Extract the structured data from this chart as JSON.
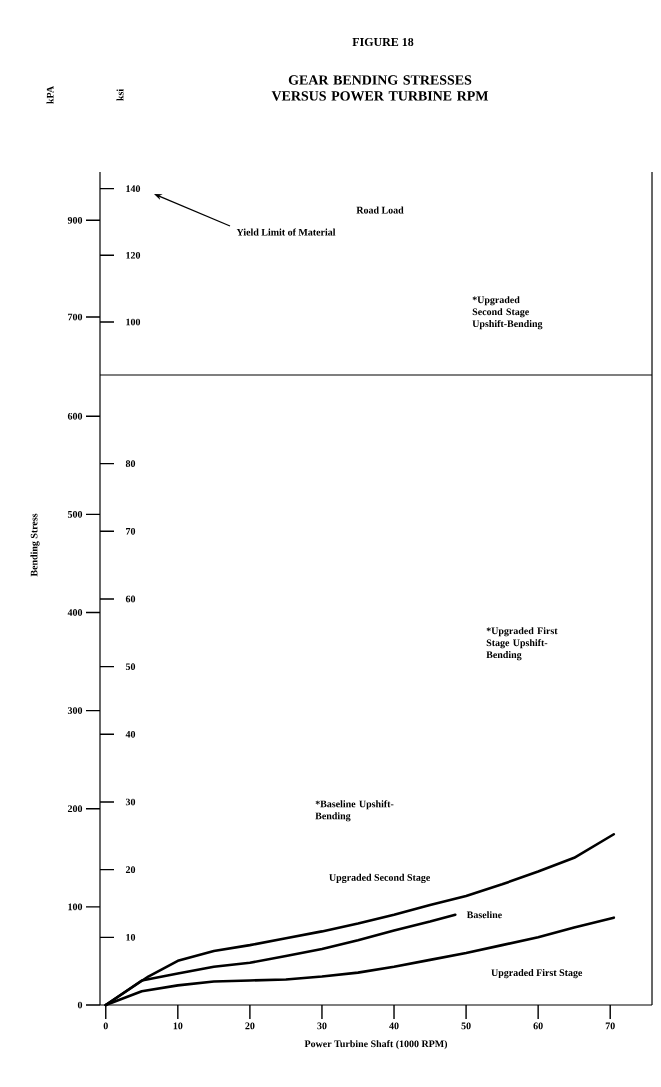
{
  "chart_data": [
    {
      "type": "line",
      "title": "FIGURE 18",
      "subtitle": "GEAR BENDING STRESSES VERSUS POWER TURBINE RPM",
      "y2label": "ksi",
      "xlim": [
        -0.8,
        75.8
      ],
      "ylim": [
        580,
        1000
      ],
      "yticks": [
        700,
        900
      ],
      "y2lim": [
        84.1,
        145.0
      ],
      "y2ticks": [
        100,
        120,
        140
      ],
      "tick_labels": "y",
      "annotations": [
        "kPA",
        "Road Load",
        "Yield Limit of Material",
        "*Upgraded Second Stage Upshift-Bending"
      ]
    },
    {
      "type": "line",
      "xlabel": "Power Turbine Shaft (1000 RPM)",
      "ylabel": "Bending Stress",
      "xlim": [
        -0.8,
        75.8
      ],
      "xticks": [
        0,
        10,
        20,
        30,
        40,
        50,
        60,
        70
      ],
      "ylim": [
        0,
        642
      ],
      "yticks": [
        0,
        100,
        200,
        300,
        400,
        500,
        600
      ],
      "y2lim": [
        0,
        93.1
      ],
      "y2ticks": [
        10,
        20,
        30,
        40,
        50,
        60,
        70,
        80
      ],
      "line_style": "solid",
      "marker": "none",
      "series": [
        {
          "name": "Upgraded Second Stage",
          "color": "#000000",
          "x": [
            0,
            5.9,
            10,
            15,
            20,
            25,
            30,
            35,
            40,
            45,
            50,
            55,
            60,
            65,
            70.5
          ],
          "values": [
            0,
            29,
            45,
            55,
            61,
            68,
            75,
            83,
            92,
            102,
            111,
            123,
            136,
            150,
            174
          ]
        },
        {
          "name": "Baseline",
          "color": "#000000",
          "x": [
            0,
            5,
            10,
            15,
            20,
            25,
            30,
            35,
            40,
            45,
            48.5
          ],
          "values": [
            0,
            25,
            32,
            39,
            43,
            50,
            57,
            66,
            76,
            85,
            92
          ]
        },
        {
          "name": "Upgraded First Stage",
          "color": "#000000",
          "x": [
            0,
            5,
            10,
            15,
            20,
            25,
            30,
            35,
            40,
            45,
            50,
            55,
            60,
            65,
            70.5
          ],
          "values": [
            0,
            14,
            20,
            24,
            25,
            26,
            29,
            33,
            39,
            46,
            53,
            61,
            69,
            79,
            89
          ]
        }
      ],
      "annotations": [
        "*Upgraded First Stage Upshift-Bending",
        "*Baseline Upshift-Bending"
      ]
    }
  ]
}
